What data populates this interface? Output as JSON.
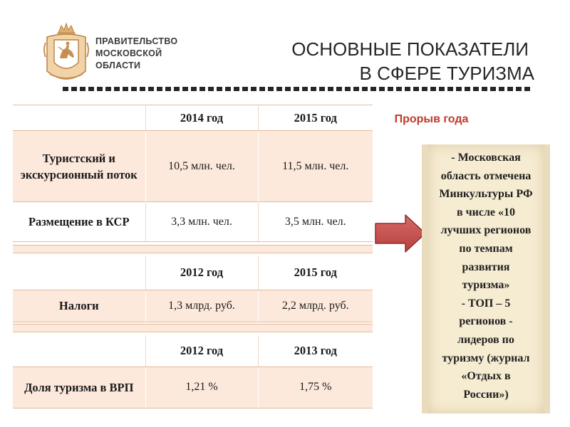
{
  "header": {
    "org_name_lines": [
      "ПРАВИТЕЛЬСТВО",
      "МОСКОВСКОЙ",
      "ОБЛАСТИ"
    ],
    "title_lines": [
      "ОСНОВНЫЕ ПОКАЗАТЕЛИ",
      "В СФЕРЕ ТУРИЗМА"
    ],
    "emblem_icon": "moscow-region-coat-of-arms-icon"
  },
  "table1": {
    "headers": [
      "",
      "2014 год",
      "2015 год"
    ],
    "rows": [
      {
        "label": "Туристский и экскурсионный поток",
        "values": [
          "10,5 млн. чел.",
          "11,5 млн. чел."
        ]
      },
      {
        "label": "Размещение в КСР",
        "values": [
          "3,3 млн. чел.",
          "3,5 млн. чел."
        ]
      }
    ]
  },
  "table2": {
    "headers": [
      "",
      "2012 год",
      "2015 год"
    ],
    "rows": [
      {
        "label": "Налоги",
        "values": [
          "1,3 млрд. руб.",
          "2,2 млрд. руб."
        ]
      }
    ]
  },
  "table3": {
    "headers": [
      "",
      "2012 год",
      "2013 год"
    ],
    "rows": [
      {
        "label": "Доля туризма в ВРП",
        "values": [
          "1,21 %",
          "1,75 %"
        ]
      }
    ]
  },
  "sidebar": {
    "heading": "Прорыв года",
    "lines": [
      "- Московская",
      "область отмечена",
      "Минкультуры РФ",
      "в числе «10",
      "лучших регионов",
      "по темпам",
      "развития",
      "туризма»",
      "- ТОП – 5",
      "регионов -",
      "лидеров по",
      "туризму (журнал",
      "«Отдых в",
      "России»)"
    ]
  },
  "colors": {
    "accent_red": "#c0392b",
    "arrow_fill": "#c0504d",
    "row_peach": "#fce9dc",
    "info_box": "#f6ecd2"
  }
}
